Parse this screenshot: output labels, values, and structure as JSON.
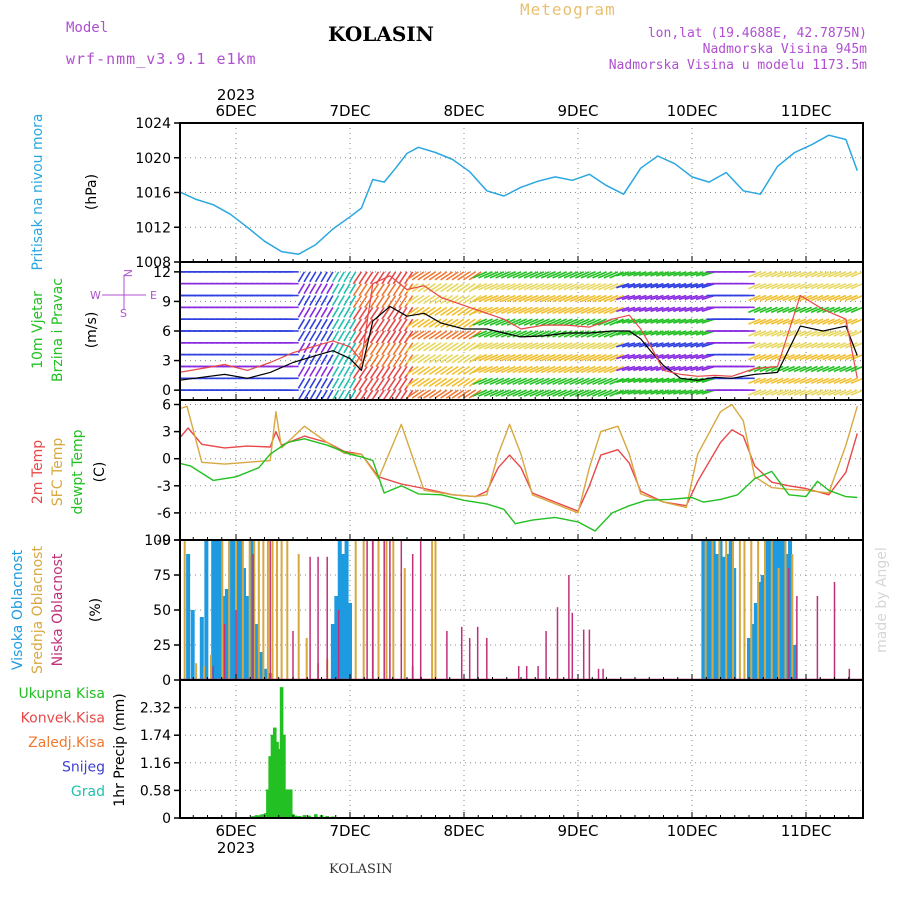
{
  "header": {
    "model_label": "Model",
    "model_name": "wrf-nmm_v3.9.1 e1km",
    "station": "KOLASIN",
    "meteogram_label": "Meteogram",
    "lonlat": "lon,lat (19.4688E, 42.7875N)",
    "elevation": "Nadmorska Visina 945m",
    "model_elevation": "Nadmorska Visina u modelu 1173.5m",
    "watermark": "made by Angel",
    "footer_station": "KOLASIN",
    "year_top": "2023",
    "year_bottom": "2023"
  },
  "colors": {
    "pressure": "#2aa7e0",
    "temp_2m": "#e84848",
    "temp_sfc": "#d8a840",
    "dewpoint": "#22c022",
    "high_cloud": "#1e9be0",
    "mid_cloud": "#d8a840",
    "low_cloud": "#c0307a",
    "precip_total": "#22c022",
    "precip_conv": "#e84848",
    "precip_frozen": "#f07830",
    "snow": "#4040d0",
    "hail": "#20c0b0",
    "wind_speed": "#000000",
    "wind_gust": "#e84848"
  },
  "chart_data": [
    {
      "type": "line",
      "panel": "pressure",
      "ylabel": "Pritisak na nivou mora",
      "unit": "(hPa)",
      "ylim": [
        1008,
        1024
      ],
      "yticks": [
        "1008",
        "1012",
        "1016",
        "1020",
        "1024"
      ],
      "x_days": [
        "6DEC",
        "7DEC",
        "8DEC",
        "9DEC",
        "10DEC",
        "11DEC"
      ],
      "grid": true,
      "series": [
        {
          "color_key": "pressure",
          "x": [
            -0.5,
            -0.35,
            -0.2,
            -0.05,
            0.1,
            0.25,
            0.4,
            0.55,
            0.7,
            0.85,
            1.0,
            1.1,
            1.2,
            1.3,
            1.4,
            1.5,
            1.6,
            1.75,
            1.9,
            2.05,
            2.2,
            2.35,
            2.5,
            2.65,
            2.8,
            2.95,
            3.1,
            3.25,
            3.4,
            3.55,
            3.7,
            3.85,
            4.0,
            4.15,
            4.3,
            4.45,
            4.6,
            4.75,
            4.9,
            5.05,
            5.2,
            5.35,
            5.45
          ],
          "y": [
            1016.1,
            1015.2,
            1014.6,
            1013.5,
            1012.0,
            1010.4,
            1009.2,
            1008.9,
            1010.0,
            1011.8,
            1013.2,
            1014.2,
            1017.5,
            1017.2,
            1018.8,
            1020.5,
            1021.2,
            1020.6,
            1019.8,
            1018.4,
            1016.2,
            1015.6,
            1016.6,
            1017.3,
            1017.8,
            1017.4,
            1018.1,
            1016.8,
            1015.8,
            1018.8,
            1020.2,
            1019.3,
            1017.8,
            1017.2,
            1018.3,
            1016.2,
            1015.8,
            1019.0,
            1020.6,
            1021.5,
            1022.6,
            1022.1,
            1018.5
          ]
        }
      ]
    },
    {
      "type": "line",
      "panel": "wind",
      "ylabel": "10m Vjetar Brzina i Pravac",
      "unit": "(m/s)",
      "ylim": [
        -1,
        13
      ],
      "yticks": [
        "0",
        "3",
        "6",
        "9",
        "12"
      ],
      "compass_labels": [
        "N",
        "E",
        "W",
        "S"
      ],
      "grid": true,
      "series": [
        {
          "name": "speed",
          "color_key": "wind_speed",
          "x": [
            -0.5,
            -0.3,
            -0.1,
            0.1,
            0.3,
            0.5,
            0.7,
            0.85,
            1.0,
            1.1,
            1.2,
            1.35,
            1.5,
            1.65,
            1.8,
            2.0,
            2.2,
            2.35,
            2.5,
            2.7,
            2.9,
            3.1,
            3.3,
            3.45,
            3.55,
            3.65,
            3.75,
            3.9,
            4.05,
            4.2,
            4.35,
            4.55,
            4.75,
            4.95,
            5.15,
            5.35,
            5.45
          ],
          "y": [
            1.0,
            1.3,
            1.6,
            1.2,
            1.8,
            2.8,
            3.5,
            4.0,
            3.2,
            2.0,
            7.0,
            8.5,
            7.5,
            7.8,
            6.8,
            6.2,
            6.2,
            5.8,
            5.4,
            5.5,
            5.8,
            5.8,
            6.0,
            6.0,
            5.2,
            3.8,
            2.5,
            1.2,
            1.0,
            1.3,
            1.2,
            1.6,
            1.8,
            6.5,
            6.0,
            6.5,
            3.5
          ]
        },
        {
          "name": "gust",
          "color_key": "wind_gust",
          "x": [
            -0.5,
            -0.3,
            -0.1,
            0.1,
            0.3,
            0.5,
            0.7,
            0.85,
            1.0,
            1.1,
            1.2,
            1.35,
            1.5,
            1.65,
            1.8,
            2.0,
            2.2,
            2.35,
            2.5,
            2.7,
            2.9,
            3.1,
            3.3,
            3.45,
            3.55,
            3.65,
            3.75,
            3.9,
            4.05,
            4.2,
            4.35,
            4.55,
            4.75,
            4.95,
            5.15,
            5.35,
            5.45
          ],
          "y": [
            1.8,
            2.2,
            2.6,
            2.0,
            2.8,
            3.8,
            4.5,
            5.0,
            4.4,
            3.0,
            10.8,
            11.6,
            10.2,
            10.6,
            9.4,
            8.6,
            7.8,
            7.2,
            6.2,
            6.6,
            6.6,
            6.4,
            7.2,
            7.6,
            6.2,
            4.2,
            2.0,
            1.6,
            1.4,
            1.5,
            1.4,
            2.2,
            2.4,
            9.6,
            8.2,
            7.2,
            1.2
          ]
        }
      ]
    },
    {
      "type": "line",
      "panel": "temperature",
      "ylabel": [
        "2m Temp",
        "SFC Temp",
        "dewpt Temp"
      ],
      "unit": "(C)",
      "ylim": [
        -9,
        6.5
      ],
      "yticks": [
        "-9",
        "-6",
        "-3",
        "0",
        "3",
        "6"
      ],
      "grid": true,
      "series": [
        {
          "name": "2m Temp",
          "color_key": "temp_2m",
          "x": [
            -0.5,
            -0.42,
            -0.3,
            -0.1,
            0.1,
            0.3,
            0.35,
            0.4,
            0.6,
            0.8,
            0.95,
            1.1,
            1.25,
            1.45,
            1.65,
            1.9,
            2.1,
            2.2,
            2.3,
            2.4,
            2.5,
            2.6,
            2.8,
            3.0,
            3.1,
            3.2,
            3.35,
            3.45,
            3.55,
            3.75,
            3.95,
            4.05,
            4.25,
            4.35,
            4.45,
            4.55,
            4.7,
            4.85,
            5.0,
            5.2,
            5.35,
            5.45
          ],
          "y": [
            2.2,
            3.4,
            1.6,
            1.2,
            1.4,
            1.3,
            3.0,
            1.5,
            2.5,
            1.8,
            0.8,
            0.5,
            -2.0,
            -2.8,
            -3.3,
            -4.0,
            -4.2,
            -3.6,
            -1.0,
            0.4,
            -1.0,
            -3.8,
            -4.8,
            -5.8,
            -3.0,
            0.4,
            1.0,
            -0.5,
            -3.6,
            -4.8,
            -5.2,
            -2.5,
            1.8,
            3.2,
            2.5,
            -0.8,
            -2.6,
            -3.0,
            -3.3,
            -4.0,
            -1.5,
            2.8
          ]
        },
        {
          "name": "SFC Temp",
          "color_key": "temp_sfc",
          "x": [
            -0.5,
            -0.43,
            -0.3,
            -0.1,
            0.1,
            0.3,
            0.35,
            0.4,
            0.6,
            0.8,
            0.95,
            1.1,
            1.25,
            1.45,
            1.65,
            1.9,
            2.1,
            2.2,
            2.3,
            2.4,
            2.5,
            2.6,
            2.8,
            3.0,
            3.1,
            3.2,
            3.35,
            3.45,
            3.55,
            3.75,
            3.95,
            4.05,
            4.25,
            4.35,
            4.45,
            4.55,
            4.7,
            4.85,
            5.0,
            5.2,
            5.35,
            5.45
          ],
          "y": [
            5.5,
            5.8,
            -0.4,
            -0.6,
            -0.4,
            -0.2,
            5.2,
            1.2,
            3.6,
            1.8,
            0.6,
            0.5,
            -2.2,
            3.8,
            -3.5,
            -4.0,
            -4.2,
            -4.0,
            0.5,
            3.8,
            0.5,
            -4.0,
            -5.0,
            -6.0,
            -1.0,
            3.0,
            3.6,
            0.5,
            -3.9,
            -4.8,
            -5.4,
            0.5,
            5.2,
            6.0,
            4.2,
            -2.0,
            -3.2,
            -3.4,
            -3.5,
            -3.8,
            1.5,
            5.8
          ]
        },
        {
          "name": "dewpt Temp",
          "color_key": "dewpoint",
          "x": [
            -0.5,
            -0.4,
            -0.2,
            0.0,
            0.2,
            0.3,
            0.45,
            0.6,
            0.8,
            1.0,
            1.1,
            1.2,
            1.3,
            1.45,
            1.6,
            1.8,
            2.0,
            2.2,
            2.35,
            2.45,
            2.6,
            2.8,
            3.0,
            3.15,
            3.3,
            3.45,
            3.6,
            3.8,
            4.0,
            4.1,
            4.25,
            4.4,
            4.55,
            4.7,
            4.85,
            5.0,
            5.1,
            5.2,
            5.35,
            5.45
          ],
          "y": [
            -0.5,
            -0.8,
            -2.4,
            -2.0,
            -1.0,
            0.5,
            1.8,
            2.2,
            1.5,
            0.5,
            0.2,
            -0.2,
            -3.8,
            -3.0,
            -3.9,
            -4.0,
            -4.6,
            -5.0,
            -5.6,
            -7.2,
            -6.8,
            -6.5,
            -7.0,
            -8.0,
            -6.0,
            -5.2,
            -4.6,
            -4.5,
            -4.3,
            -4.8,
            -4.5,
            -4.0,
            -2.2,
            -1.4,
            -4.0,
            -4.2,
            -2.5,
            -3.5,
            -4.2,
            -4.3
          ]
        }
      ]
    },
    {
      "type": "bar",
      "panel": "clouds",
      "ylabel": [
        "Visoka Oblacnost",
        "Srednja Oblacnost",
        "Niska Oblacnost"
      ],
      "unit": "(%)",
      "ylim": [
        0,
        100
      ],
      "yticks": [
        "0",
        "25",
        "50",
        "75",
        "100"
      ],
      "grid": true,
      "series": [
        {
          "name": "Visoka Oblacnost",
          "color_key": "high_cloud",
          "x": [
            -0.42,
            -0.38,
            -0.3,
            -0.26,
            -0.2,
            -0.17,
            -0.14,
            -0.11,
            -0.08,
            -0.05,
            -0.02,
            0.01,
            0.04,
            0.07,
            0.1,
            0.14,
            0.18,
            0.22,
            0.26,
            0.3,
            0.85,
            0.88,
            0.91,
            0.94,
            0.97,
            1.0,
            4.1,
            4.13,
            4.16,
            4.19,
            4.22,
            4.25,
            4.28,
            4.31,
            4.34,
            4.37,
            4.5,
            4.53,
            4.56,
            4.59,
            4.62,
            4.65,
            4.68,
            4.71,
            4.74,
            4.77,
            4.8,
            4.83,
            4.86,
            4.9
          ],
          "y": [
            90,
            50,
            45,
            100,
            100,
            100,
            100,
            60,
            65,
            100,
            100,
            100,
            100,
            80,
            60,
            100,
            40,
            20,
            8,
            5,
            40,
            60,
            100,
            90,
            100,
            55,
            100,
            100,
            100,
            100,
            90,
            100,
            88,
            90,
            100,
            80,
            30,
            40,
            55,
            70,
            75,
            100,
            100,
            100,
            100,
            100,
            100,
            90,
            100,
            25
          ]
        },
        {
          "name": "Srednja Oblacnost",
          "color_key": "mid_cloud",
          "x": [
            -0.45,
            -0.35,
            -0.28,
            -0.22,
            -0.12,
            -0.06,
            0.0,
            0.06,
            0.12,
            0.16,
            0.2,
            0.24,
            0.28,
            0.32,
            0.36,
            0.4,
            0.45,
            0.55,
            0.62,
            0.72,
            0.8,
            1.05,
            1.12,
            1.2,
            1.25,
            1.32,
            1.38,
            1.48,
            1.55,
            1.72,
            1.75,
            4.12,
            4.18,
            4.24,
            4.3,
            4.36,
            4.42,
            4.46,
            4.52,
            4.58,
            4.64,
            4.7,
            4.76,
            4.82,
            4.88
          ],
          "y": [
            100,
            12,
            10,
            18,
            100,
            100,
            100,
            100,
            100,
            100,
            100,
            100,
            100,
            100,
            100,
            100,
            100,
            90,
            30,
            12,
            15,
            100,
            100,
            100,
            100,
            100,
            100,
            80,
            10,
            100,
            100,
            100,
            100,
            100,
            100,
            100,
            100,
            100,
            100,
            100,
            100,
            100,
            80,
            100,
            90
          ]
        },
        {
          "name": "Niska Oblacnost",
          "color_key": "low_cloud",
          "x": [
            -0.2,
            -0.1,
            0.0,
            0.15,
            0.3,
            0.5,
            0.65,
            0.72,
            0.8,
            0.9,
            1.15,
            1.2,
            1.3,
            1.35,
            1.45,
            1.55,
            1.62,
            1.85,
            1.98,
            2.05,
            2.12,
            2.2,
            2.48,
            2.55,
            2.65,
            2.72,
            2.82,
            2.92,
            2.95,
            3.05,
            3.1,
            3.18,
            3.22,
            4.85,
            4.92,
            5.1,
            5.25,
            5.38
          ],
          "y": [
            10,
            40,
            50,
            90,
            100,
            35,
            88,
            88,
            88,
            50,
            100,
            100,
            100,
            100,
            100,
            90,
            100,
            35,
            38,
            30,
            38,
            30,
            10,
            10,
            10,
            35,
            52,
            75,
            48,
            36,
            36,
            8,
            8,
            80,
            60,
            60,
            70,
            8
          ]
        }
      ]
    },
    {
      "type": "bar",
      "panel": "precipitation",
      "ylabel": "1hr Precip (mm)",
      "legend": [
        "Ukupna Kisa",
        "Konvek.Kisa",
        "Zaledj.Kisa",
        "Snijeg",
        "Grad"
      ],
      "ylim": [
        0,
        2.9
      ],
      "yticks": [
        "0",
        "0.58",
        "1.16",
        "1.74",
        "2.32"
      ],
      "grid": true,
      "series": [
        {
          "name": "Ukupna Kisa",
          "color_key": "precip_total",
          "x": [
            0.15,
            0.18,
            0.2,
            0.22,
            0.24,
            0.26,
            0.28,
            0.3,
            0.32,
            0.34,
            0.36,
            0.38,
            0.4,
            0.42,
            0.44,
            0.46,
            0.48,
            0.5,
            0.52,
            0.54,
            0.56,
            0.6,
            0.64,
            0.7,
            0.75,
            0.8,
            0.85
          ],
          "y": [
            0.04,
            0.06,
            0.05,
            0.07,
            0.08,
            0.1,
            0.6,
            1.3,
            1.75,
            1.9,
            1.6,
            1.45,
            2.75,
            1.75,
            0.6,
            0.6,
            0.6,
            0.08,
            0.05,
            0.04,
            0.04,
            0.06,
            0.05,
            0.08,
            0.06,
            0.04,
            0.03
          ]
        }
      ]
    }
  ]
}
